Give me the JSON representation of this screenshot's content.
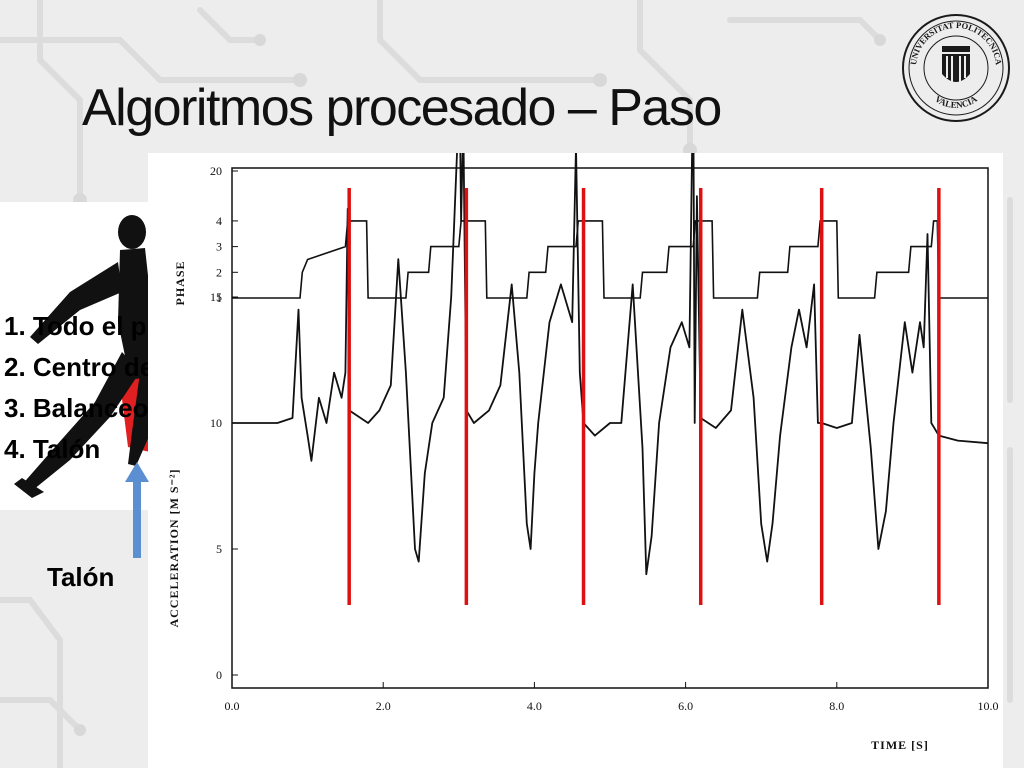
{
  "slide": {
    "title": "Algoritmos procesado – Paso",
    "logo": {
      "icon": "university-seal-icon",
      "text_top": "UNIVERSITAT POLITÈCNICA",
      "text_bottom": "VALENCIA"
    }
  },
  "phases": {
    "items": [
      "1. Todo el pie",
      "2. Centro del pie",
      "3. Balanceo",
      "4. Talón"
    ]
  },
  "annotation": {
    "label": "Talón",
    "arrow_icon": "up-arrow-icon",
    "arrow_color": "#5b8fd1"
  },
  "colors": {
    "step_markers": "#dd1111",
    "highlight": "#e02020",
    "curve": "#111111"
  },
  "chart_data": {
    "type": "line",
    "xlabel": "TIME [S]",
    "ylabel": "ACCELERATION [M S⁻²]",
    "phase_label": "PHASE",
    "xlim": [
      0,
      10
    ],
    "x_ticks": [
      "0.0",
      "2.0",
      "4.0",
      "6.0",
      "8.0",
      "10.0"
    ],
    "y_ticks": [
      "0",
      "5",
      "10",
      "15",
      "20"
    ],
    "phase_ticks": [
      "1",
      "2",
      "3",
      "4"
    ],
    "step_markers_x": [
      1.55,
      3.1,
      4.65,
      6.2,
      7.8,
      9.35
    ],
    "phase_series": {
      "name": "PHASE",
      "x": [
        0,
        0.9,
        0.93,
        1.0,
        1.5,
        1.53,
        1.55,
        1.78,
        1.8,
        2.3,
        2.33,
        2.6,
        2.63,
        3.0,
        3.03,
        3.1,
        3.35,
        3.37,
        3.9,
        3.93,
        4.15,
        4.18,
        4.55,
        4.58,
        4.65,
        4.9,
        4.92,
        5.4,
        5.43,
        5.75,
        5.78,
        6.1,
        6.13,
        6.2,
        6.35,
        6.37,
        6.95,
        6.98,
        7.35,
        7.38,
        7.75,
        7.78,
        7.8,
        8.0,
        8.02,
        8.5,
        8.53,
        8.95,
        8.98,
        9.25,
        9.28,
        9.33,
        9.35,
        10.0
      ],
      "y": [
        1,
        1,
        2,
        2.5,
        3,
        4,
        4,
        4,
        1,
        1,
        2,
        2,
        3,
        3,
        4,
        4,
        4,
        1,
        1,
        2,
        2,
        3,
        3,
        4,
        4,
        4,
        1,
        1,
        2,
        2,
        3,
        3,
        4,
        4,
        4,
        1,
        1,
        2,
        2,
        3,
        3,
        4,
        4,
        4,
        1,
        1,
        2,
        2,
        3,
        3,
        4,
        4,
        1,
        1
      ]
    },
    "acceleration_series": {
      "name": "ACCELERATION",
      "x": [
        0,
        0.3,
        0.6,
        0.8,
        0.88,
        0.92,
        1.0,
        1.05,
        1.15,
        1.25,
        1.35,
        1.45,
        1.5,
        1.53,
        1.55,
        1.65,
        1.8,
        1.95,
        2.1,
        2.2,
        2.3,
        2.42,
        2.47,
        2.55,
        2.65,
        2.8,
        2.9,
        2.98,
        3.0,
        3.03,
        3.06,
        3.1,
        3.2,
        3.4,
        3.55,
        3.7,
        3.8,
        3.9,
        3.95,
        4.0,
        4.05,
        4.2,
        4.35,
        4.5,
        4.55,
        4.6,
        4.65,
        4.8,
        5.0,
        5.15,
        5.3,
        5.43,
        5.48,
        5.55,
        5.65,
        5.8,
        5.95,
        6.05,
        6.1,
        6.12,
        6.15,
        6.2,
        6.4,
        6.6,
        6.75,
        6.9,
        7.0,
        7.08,
        7.15,
        7.25,
        7.4,
        7.5,
        7.6,
        7.7,
        7.75,
        7.8,
        8.0,
        8.2,
        8.3,
        8.45,
        8.55,
        8.65,
        8.75,
        8.9,
        9.0,
        9.1,
        9.15,
        9.2,
        9.25,
        9.35,
        9.6,
        10.0
      ],
      "y": [
        10,
        10,
        10,
        10.2,
        14.5,
        11,
        9.5,
        8.5,
        11,
        10,
        12,
        11,
        12,
        18.5,
        10.5,
        10.3,
        10,
        10.5,
        11.5,
        16.5,
        12,
        5,
        4.5,
        8,
        10,
        11,
        15,
        21,
        26,
        18,
        22,
        10.5,
        10,
        10.5,
        11.5,
        15.5,
        12,
        6,
        5,
        8,
        10,
        14,
        15.5,
        14,
        21,
        12,
        10,
        9.5,
        10,
        10,
        15.5,
        9,
        4,
        5.5,
        10,
        13,
        14,
        13,
        24,
        10,
        19,
        10.2,
        9.8,
        10.5,
        14.5,
        11,
        6,
        4.5,
        6,
        9.5,
        13,
        14.5,
        13,
        15.5,
        10,
        10,
        9.8,
        10,
        13.5,
        9,
        5,
        6.5,
        10,
        14,
        12,
        14,
        13,
        17.5,
        10,
        9.5,
        9.3,
        9.2
      ]
    }
  }
}
